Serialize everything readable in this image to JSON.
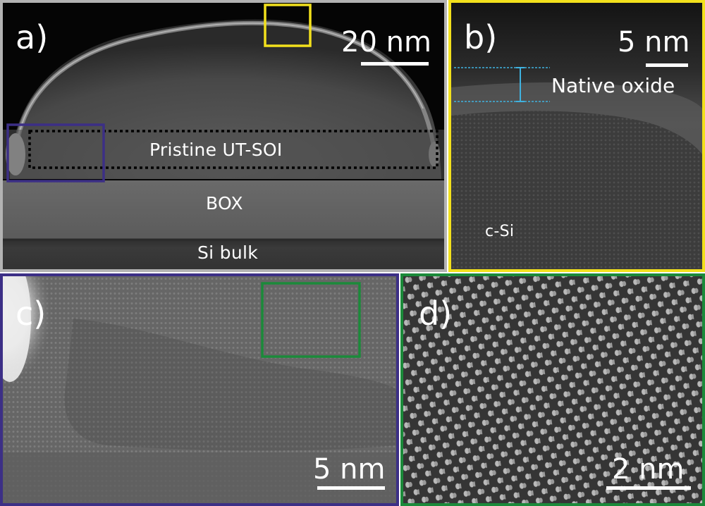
{
  "panels": {
    "a": {
      "label": "a)",
      "scale_bar": "20 nm",
      "regions": {
        "pristine": "Pristine UT-SOI",
        "box": "BOX",
        "bulk": "Si bulk"
      }
    },
    "b": {
      "label": "b)",
      "scale_bar": "5 nm",
      "annotation": "Native oxide",
      "material": "c-Si"
    },
    "c": {
      "label": "c)",
      "scale_bar": "5 nm"
    },
    "d": {
      "label": "d)",
      "scale_bar": "2 nm"
    }
  },
  "colors": {
    "panel_a_frame": "#b3b3b3",
    "panel_b_frame": "#f2e01c",
    "panel_c_frame": "#3c2f86",
    "panel_d_frame": "#1b8a3a",
    "oxide_marker": "#3fb2e0"
  }
}
